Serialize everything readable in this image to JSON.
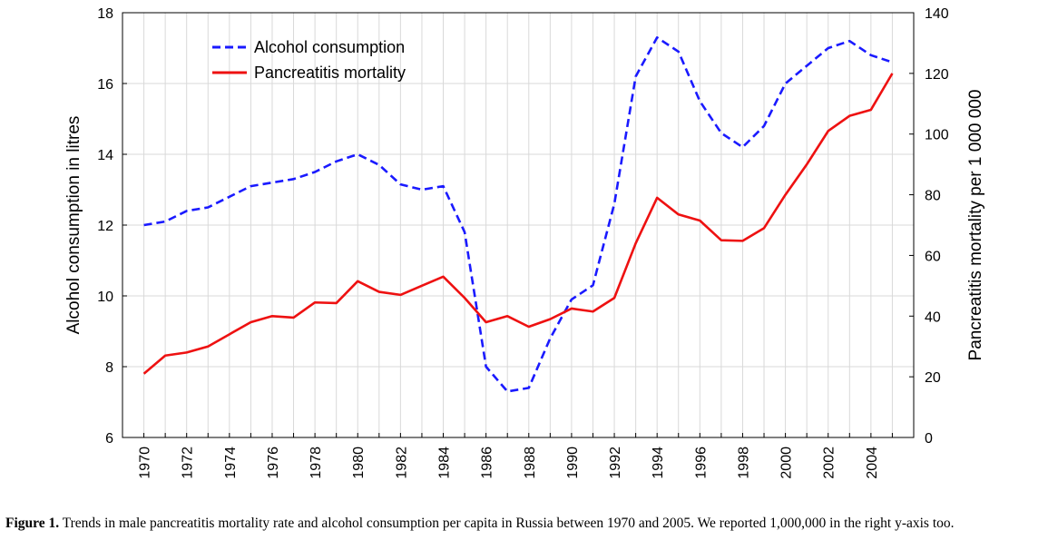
{
  "chart_data": {
    "type": "line",
    "x": [
      1970,
      1971,
      1972,
      1973,
      1974,
      1975,
      1976,
      1977,
      1978,
      1979,
      1980,
      1981,
      1982,
      1983,
      1984,
      1985,
      1986,
      1987,
      1988,
      1989,
      1990,
      1991,
      1992,
      1993,
      1994,
      1995,
      1996,
      1997,
      1998,
      1999,
      2000,
      2001,
      2002,
      2003,
      2004,
      2005
    ],
    "x_tick_labels": [
      "1970",
      "1972",
      "1974",
      "1976",
      "1978",
      "1980",
      "1982",
      "1984",
      "1986",
      "1988",
      "1990",
      "1992",
      "1994",
      "1996",
      "1998",
      "2000",
      "2002",
      "2004"
    ],
    "xlim": [
      1969,
      2006
    ],
    "ylabel": "Alcohol consumption in litres",
    "ylim": [
      6,
      18
    ],
    "y_ticks": [
      "6",
      "8",
      "10",
      "12",
      "14",
      "16",
      "18"
    ],
    "y2label": "Pancreatitis mortality per 1 000 000",
    "y2lim": [
      0,
      140
    ],
    "y2_ticks": [
      "0",
      "20",
      "40",
      "60",
      "80",
      "100",
      "120",
      "140"
    ],
    "grid": true,
    "legend_position": "top-left",
    "series": [
      {
        "name": "Alcohol consumption",
        "axis": "left",
        "style": "dashed",
        "color": "#1a1aff",
        "values": [
          12.0,
          12.1,
          12.4,
          12.5,
          12.8,
          13.1,
          13.2,
          13.3,
          13.5,
          13.8,
          14.0,
          13.7,
          13.15,
          13.0,
          13.1,
          11.8,
          8.0,
          7.3,
          7.4,
          8.8,
          9.9,
          10.3,
          12.6,
          16.2,
          17.3,
          16.9,
          15.5,
          14.6,
          14.2,
          14.8,
          16.0,
          16.5,
          17.0,
          17.2,
          16.8,
          16.6
        ]
      },
      {
        "name": "Pancreatitis mortality",
        "axis": "right",
        "style": "solid",
        "color": "#ee1111",
        "values": [
          21,
          27,
          28,
          30,
          34,
          38,
          40,
          39.5,
          44.5,
          44.3,
          51.5,
          48,
          47,
          50,
          53,
          46,
          38,
          40,
          36.5,
          39,
          42.5,
          41.5,
          46,
          64,
          79,
          73.5,
          71.5,
          65,
          64.8,
          69,
          80,
          90,
          101,
          106,
          108,
          120
        ]
      }
    ]
  },
  "caption": {
    "label": "Figure 1.",
    "text": " Trends in male pancreatitis mortality rate and alcohol consumption per capita in Russia between 1970 and 2005. We reported 1,000,000  in the right y-axis too."
  }
}
